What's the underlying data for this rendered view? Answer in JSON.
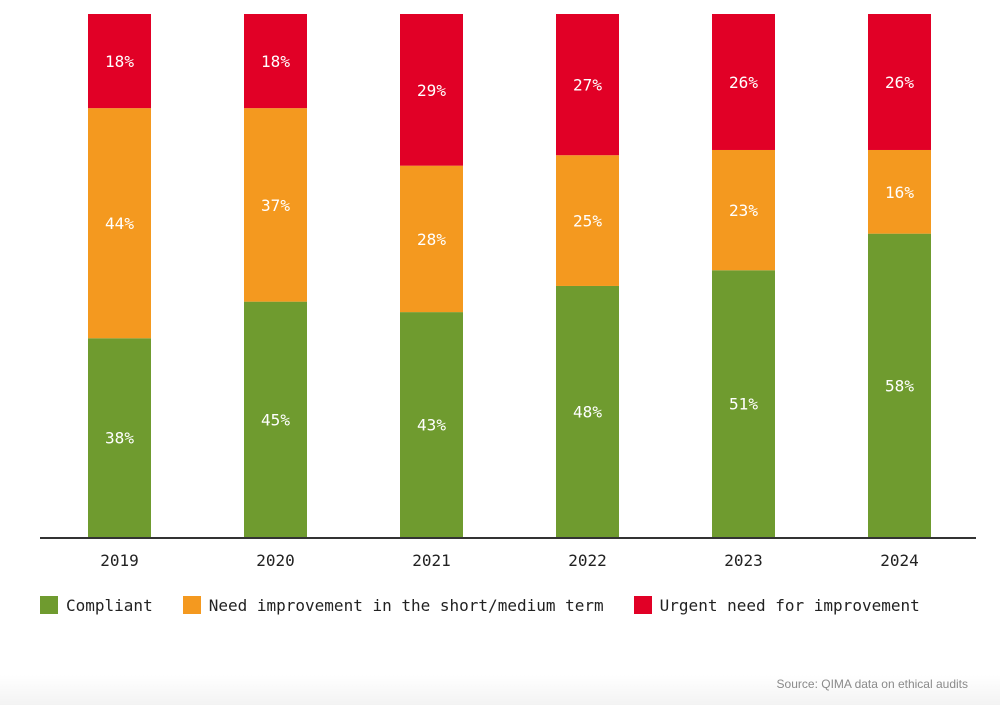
{
  "chart_data": {
    "type": "bar",
    "stacked": true,
    "categories": [
      "2019",
      "2020",
      "2021",
      "2022",
      "2023",
      "2024"
    ],
    "series": [
      {
        "name": "Compliant",
        "values": [
          38,
          45,
          43,
          48,
          51,
          58
        ],
        "color": "#6f9b2f"
      },
      {
        "name": "Need improvement in the short/medium term",
        "values": [
          44,
          37,
          28,
          25,
          23,
          16
        ],
        "color": "#f4991f"
      },
      {
        "name": "Urgent need for improvement",
        "values": [
          18,
          18,
          29,
          27,
          26,
          26
        ],
        "color": "#e10026"
      }
    ],
    "value_suffix": "%",
    "ylim": [
      0,
      100
    ],
    "grid": false,
    "legend_position": "bottom"
  },
  "source_text": "Source: QIMA data on ethical audits"
}
